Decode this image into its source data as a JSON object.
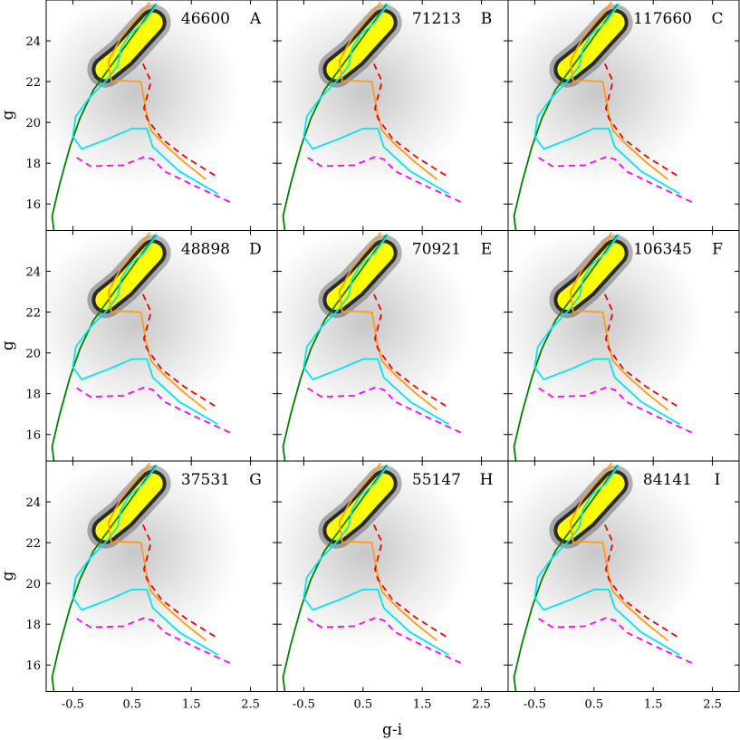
{
  "axes": {
    "xlabel": "g-i",
    "ylabel": "g",
    "xlim": [
      -0.95,
      2.95
    ],
    "ylim": [
      26.0,
      14.7
    ],
    "xticks": [
      -0.5,
      0.5,
      1.5,
      2.5
    ],
    "xtick_labels": [
      "-0.5",
      "0.5",
      "1.5",
      "2.5"
    ],
    "yticks": [
      16,
      18,
      20,
      22,
      24
    ],
    "ytick_labels": [
      "16",
      "18",
      "20",
      "22",
      "24"
    ]
  },
  "panels": [
    {
      "letter": "A",
      "count": "46600"
    },
    {
      "letter": "B",
      "count": "71213"
    },
    {
      "letter": "C",
      "count": "117660"
    },
    {
      "letter": "D",
      "count": "48898"
    },
    {
      "letter": "E",
      "count": "70921"
    },
    {
      "letter": "F",
      "count": "106345"
    },
    {
      "letter": "G",
      "count": "37531"
    },
    {
      "letter": "H",
      "count": "55147"
    },
    {
      "letter": "I",
      "count": "84141"
    }
  ],
  "colors": {
    "density": "#000000",
    "contour_fill": "#ffff00",
    "green_track": "#008000",
    "cyan_track": "#00e5ee",
    "orange_track": "#ff9a1a",
    "magenta_dashed": "#ff00ff",
    "red_dashed": "#ee0000"
  },
  "chart_data": {
    "type": "scatter",
    "layout": "3x3 grid, shared axes",
    "density": {
      "style": "grey-scale 2D histogram of stars",
      "main_sequence": [
        [
          0.05,
          22.6
        ],
        [
          0.35,
          23.3
        ],
        [
          0.6,
          24.1
        ],
        [
          0.85,
          24.9
        ]
      ],
      "yellow_region_span": {
        "g_i": [
          -0.15,
          0.95
        ],
        "g": [
          21.9,
          25.0
        ]
      }
    },
    "series": [
      {
        "color": "green",
        "style": "solid",
        "points": [
          [
            -0.82,
            14.7
          ],
          [
            -0.85,
            15.4
          ],
          [
            -0.72,
            17.0
          ],
          [
            -0.55,
            18.8
          ],
          [
            -0.38,
            20.2
          ],
          [
            -0.15,
            21.6
          ],
          [
            0.1,
            22.6
          ],
          [
            0.35,
            23.6
          ],
          [
            0.6,
            24.6
          ],
          [
            0.9,
            25.8
          ]
        ]
      },
      {
        "color": "cyan",
        "style": "solid",
        "points": [
          [
            1.95,
            16.5
          ],
          [
            1.3,
            17.6
          ],
          [
            0.85,
            18.8
          ],
          [
            0.75,
            19.7
          ],
          [
            0.5,
            19.7
          ],
          [
            0.1,
            19.2
          ],
          [
            -0.35,
            18.7
          ],
          [
            -0.5,
            19.3
          ],
          [
            -0.45,
            20.3
          ],
          [
            -0.22,
            21.2
          ],
          [
            0.08,
            22.1
          ],
          [
            0.26,
            22.8
          ],
          [
            0.31,
            23.6
          ],
          [
            0.45,
            24.3
          ],
          [
            0.7,
            24.9
          ],
          [
            0.92,
            25.8
          ]
        ]
      },
      {
        "color": "orange",
        "style": "solid",
        "points": [
          [
            1.75,
            17.2
          ],
          [
            1.4,
            18.0
          ],
          [
            1.05,
            18.9
          ],
          [
            0.82,
            19.6
          ],
          [
            0.74,
            20.5
          ],
          [
            0.65,
            22.0
          ],
          [
            0.3,
            22.05
          ],
          [
            0.15,
            22.0
          ],
          [
            0.1,
            23.0
          ],
          [
            0.3,
            24.1
          ],
          [
            0.55,
            25.0
          ],
          [
            0.8,
            25.9
          ]
        ]
      },
      {
        "color": "magenta",
        "style": "dashed",
        "points": [
          [
            2.15,
            16.1
          ],
          [
            1.55,
            16.9
          ],
          [
            1.05,
            17.6
          ],
          [
            0.85,
            18.2
          ],
          [
            0.7,
            18.3
          ],
          [
            0.35,
            17.9
          ],
          [
            -0.2,
            17.85
          ],
          [
            -0.45,
            18.3
          ]
        ]
      },
      {
        "color": "red",
        "style": "dashed",
        "points": [
          [
            1.9,
            17.4
          ],
          [
            1.4,
            18.3
          ],
          [
            1.0,
            19.2
          ],
          [
            0.75,
            20.2
          ],
          [
            0.7,
            20.7
          ],
          [
            0.82,
            22.0
          ],
          [
            0.68,
            22.9
          ]
        ]
      }
    ]
  }
}
